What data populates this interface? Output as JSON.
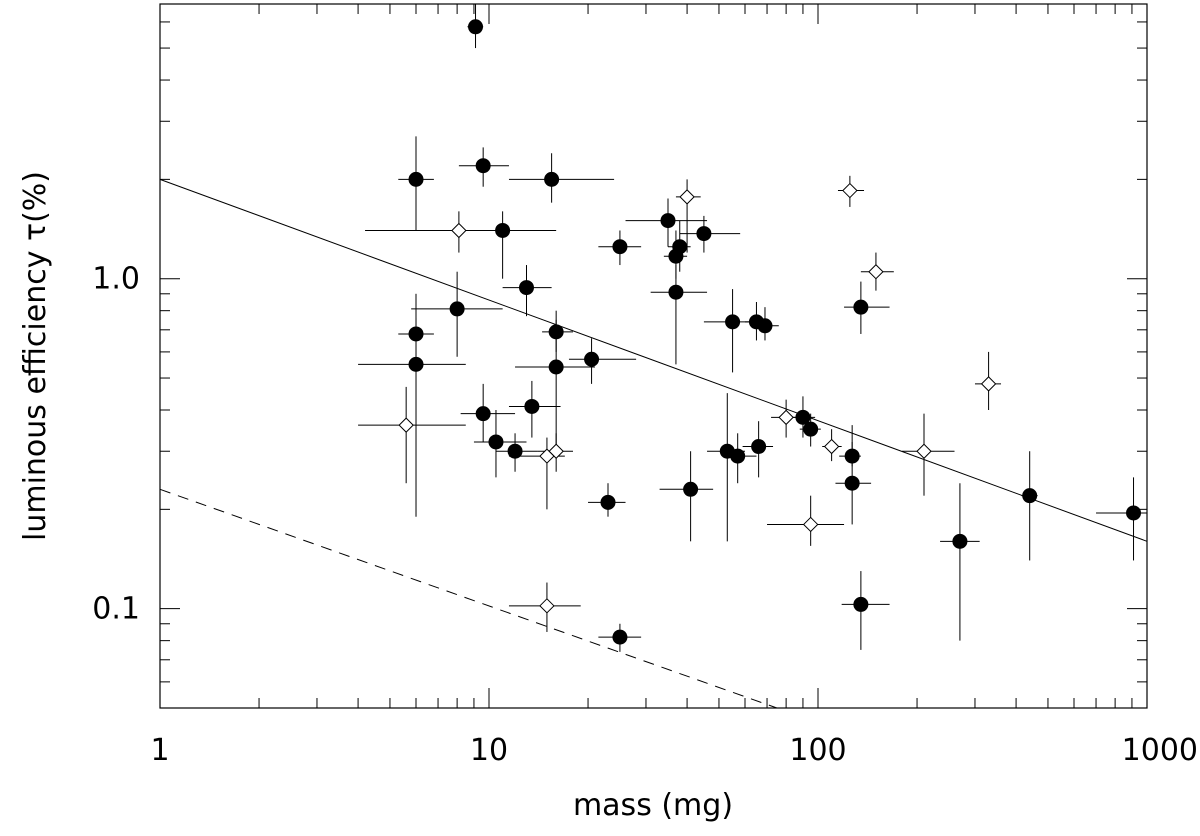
{
  "chart_data": {
    "type": "scatter",
    "title": "",
    "xlabel": "mass (mg)",
    "ylabel": "luminous efficiency τ(%)",
    "xscale": "log",
    "yscale": "log",
    "xlim": [
      1,
      1000
    ],
    "ylim": [
      0.05,
      6.8
    ],
    "x_tick_labels": [
      {
        "value": 1,
        "label": "1"
      },
      {
        "value": 10,
        "label": "10"
      },
      {
        "value": 100,
        "label": "100"
      },
      {
        "value": 1000,
        "label": "1000"
      }
    ],
    "y_tick_labels": [
      {
        "value": 0.1,
        "label": "0.1"
      },
      {
        "value": 1.0,
        "label": "1.0"
      }
    ],
    "series": [
      {
        "name": "filled-circles",
        "marker": "filled-circle",
        "points": [
          {
            "x": 9.1,
            "y": 5.8,
            "xlo": 8.6,
            "xhi": 9.6,
            "ylo": 5.0,
            "yhi": 6.8
          },
          {
            "x": 9.6,
            "y": 2.2,
            "xlo": 8.1,
            "xhi": 11.5,
            "ylo": 1.9,
            "yhi": 2.5
          },
          {
            "x": 6.0,
            "y": 2.0,
            "xlo": 5.3,
            "xhi": 6.8,
            "ylo": 1.4,
            "yhi": 2.7
          },
          {
            "x": 15.5,
            "y": 2.0,
            "xlo": 11.5,
            "xhi": 24.0,
            "ylo": 1.7,
            "yhi": 2.4
          },
          {
            "x": 11.0,
            "y": 1.4,
            "xlo": 8.1,
            "xhi": 16.0,
            "ylo": 1.0,
            "yhi": 1.6
          },
          {
            "x": 25.0,
            "y": 1.25,
            "xlo": 21.5,
            "xhi": 29.0,
            "ylo": 1.1,
            "yhi": 1.4
          },
          {
            "x": 35.0,
            "y": 1.5,
            "xlo": 26.0,
            "xhi": 46.0,
            "ylo": 1.25,
            "yhi": 1.75
          },
          {
            "x": 38.0,
            "y": 1.25,
            "xlo": 35.0,
            "xhi": 41.0,
            "ylo": 1.05,
            "yhi": 1.5
          },
          {
            "x": 37.0,
            "y": 1.17,
            "xlo": 34.0,
            "xhi": 40.0,
            "ylo": 1.0,
            "yhi": 1.4
          },
          {
            "x": 45.0,
            "y": 1.37,
            "xlo": 38.0,
            "xhi": 58.0,
            "ylo": 1.2,
            "yhi": 1.55
          },
          {
            "x": 13.0,
            "y": 0.94,
            "xlo": 11.0,
            "xhi": 15.5,
            "ylo": 0.77,
            "yhi": 1.1
          },
          {
            "x": 37.0,
            "y": 0.91,
            "xlo": 31.0,
            "xhi": 46.0,
            "ylo": 0.55,
            "yhi": 1.1
          },
          {
            "x": 8.0,
            "y": 0.81,
            "xlo": 5.8,
            "xhi": 11.0,
            "ylo": 0.58,
            "yhi": 1.05
          },
          {
            "x": 55.0,
            "y": 0.74,
            "xlo": 45.0,
            "xhi": 62.0,
            "ylo": 0.52,
            "yhi": 0.93
          },
          {
            "x": 65.0,
            "y": 0.74,
            "xlo": 60.0,
            "xhi": 70.0,
            "ylo": 0.65,
            "yhi": 0.85
          },
          {
            "x": 69.0,
            "y": 0.72,
            "xlo": 64.0,
            "xhi": 76.0,
            "ylo": 0.65,
            "yhi": 0.82
          },
          {
            "x": 135.0,
            "y": 0.82,
            "xlo": 120.0,
            "xhi": 165.0,
            "ylo": 0.68,
            "yhi": 0.98
          },
          {
            "x": 6.0,
            "y": 0.68,
            "xlo": 5.3,
            "xhi": 6.8,
            "ylo": 0.55,
            "yhi": 0.9
          },
          {
            "x": 16.0,
            "y": 0.69,
            "xlo": 14.5,
            "xhi": 18.0,
            "ylo": 0.6,
            "yhi": 0.8
          },
          {
            "x": 6.0,
            "y": 0.55,
            "xlo": 4.0,
            "xhi": 8.5,
            "ylo": 0.19,
            "yhi": 0.76
          },
          {
            "x": 16.0,
            "y": 0.54,
            "xlo": 12.0,
            "xhi": 21.0,
            "ylo": 0.29,
            "yhi": 0.75
          },
          {
            "x": 20.5,
            "y": 0.57,
            "xlo": 17.5,
            "xhi": 28.0,
            "ylo": 0.48,
            "yhi": 0.66
          },
          {
            "x": 9.6,
            "y": 0.39,
            "xlo": 8.2,
            "xhi": 12.0,
            "ylo": 0.32,
            "yhi": 0.48
          },
          {
            "x": 13.5,
            "y": 0.41,
            "xlo": 11.5,
            "xhi": 16.5,
            "ylo": 0.33,
            "yhi": 0.49
          },
          {
            "x": 10.5,
            "y": 0.32,
            "xlo": 9.0,
            "xhi": 13.0,
            "ylo": 0.25,
            "yhi": 0.4
          },
          {
            "x": 12.0,
            "y": 0.3,
            "xlo": 10.5,
            "xhi": 14.0,
            "ylo": 0.26,
            "yhi": 0.34
          },
          {
            "x": 23.0,
            "y": 0.21,
            "xlo": 20.0,
            "xhi": 26.0,
            "ylo": 0.19,
            "yhi": 0.24
          },
          {
            "x": 41.0,
            "y": 0.23,
            "xlo": 33.0,
            "xhi": 48.0,
            "ylo": 0.16,
            "yhi": 0.3
          },
          {
            "x": 53.0,
            "y": 0.3,
            "xlo": 46.0,
            "xhi": 60.0,
            "ylo": 0.16,
            "yhi": 0.45
          },
          {
            "x": 57.0,
            "y": 0.29,
            "xlo": 52.0,
            "xhi": 65.0,
            "ylo": 0.24,
            "yhi": 0.34
          },
          {
            "x": 66.0,
            "y": 0.31,
            "xlo": 59.0,
            "xhi": 73.0,
            "ylo": 0.25,
            "yhi": 0.37
          },
          {
            "x": 90.0,
            "y": 0.38,
            "xlo": 82.0,
            "xhi": 98.0,
            "ylo": 0.33,
            "yhi": 0.44
          },
          {
            "x": 95.0,
            "y": 0.35,
            "xlo": 88.0,
            "xhi": 102.0,
            "ylo": 0.31,
            "yhi": 0.39
          },
          {
            "x": 127.0,
            "y": 0.29,
            "xlo": 116.0,
            "xhi": 135.0,
            "ylo": 0.27,
            "yhi": 0.32
          },
          {
            "x": 127.0,
            "y": 0.24,
            "xlo": 113.0,
            "xhi": 145.0,
            "ylo": 0.18,
            "yhi": 0.36
          },
          {
            "x": 25.0,
            "y": 0.082,
            "xlo": 21.5,
            "xhi": 29.0,
            "ylo": 0.074,
            "yhi": 0.09
          },
          {
            "x": 135.0,
            "y": 0.103,
            "xlo": 118.0,
            "xhi": 165.0,
            "ylo": 0.075,
            "yhi": 0.13
          },
          {
            "x": 270.0,
            "y": 0.16,
            "xlo": 235.0,
            "xhi": 310.0,
            "ylo": 0.08,
            "yhi": 0.24
          },
          {
            "x": 440.0,
            "y": 0.22,
            "xlo": 415.0,
            "xhi": 465.0,
            "ylo": 0.14,
            "yhi": 0.3
          },
          {
            "x": 910.0,
            "y": 0.195,
            "xlo": 700.0,
            "xhi": 1000.0,
            "ylo": 0.14,
            "yhi": 0.25
          }
        ]
      },
      {
        "name": "open-diamonds",
        "marker": "open-diamond",
        "points": [
          {
            "x": 8.1,
            "y": 1.4,
            "xlo": 4.2,
            "xhi": 13.0,
            "ylo": 1.2,
            "yhi": 1.6
          },
          {
            "x": 40.0,
            "y": 1.77,
            "xlo": 37.0,
            "xhi": 44.0,
            "ylo": 1.2,
            "yhi": 2.0
          },
          {
            "x": 125.0,
            "y": 1.85,
            "xlo": 115.0,
            "xhi": 138.0,
            "ylo": 1.65,
            "yhi": 2.05
          },
          {
            "x": 150.0,
            "y": 1.05,
            "xlo": 135.0,
            "xhi": 170.0,
            "ylo": 0.92,
            "yhi": 1.2
          },
          {
            "x": 5.6,
            "y": 0.36,
            "xlo": 4.0,
            "xhi": 8.5,
            "ylo": 0.24,
            "yhi": 0.47
          },
          {
            "x": 16.0,
            "y": 0.3,
            "xlo": 14.0,
            "xhi": 18.0,
            "ylo": 0.26,
            "yhi": 0.34
          },
          {
            "x": 15.0,
            "y": 0.29,
            "xlo": 11.5,
            "xhi": 17.0,
            "ylo": 0.2,
            "yhi": 0.33
          },
          {
            "x": 80.0,
            "y": 0.38,
            "xlo": 72.0,
            "xhi": 88.0,
            "ylo": 0.33,
            "yhi": 0.43
          },
          {
            "x": 95.0,
            "y": 0.18,
            "xlo": 70.0,
            "xhi": 120.0,
            "ylo": 0.155,
            "yhi": 0.22
          },
          {
            "x": 110.0,
            "y": 0.31,
            "xlo": 103.0,
            "xhi": 118.0,
            "ylo": 0.28,
            "yhi": 0.35
          },
          {
            "x": 210.0,
            "y": 0.3,
            "xlo": 180.0,
            "xhi": 260.0,
            "ylo": 0.22,
            "yhi": 0.39
          },
          {
            "x": 330.0,
            "y": 0.48,
            "xlo": 300.0,
            "xhi": 360.0,
            "ylo": 0.4,
            "yhi": 0.6
          },
          {
            "x": 15.0,
            "y": 0.102,
            "xlo": 11.5,
            "xhi": 19.0,
            "ylo": 0.085,
            "yhi": 0.12
          }
        ]
      }
    ],
    "lines": [
      {
        "name": "solid-fit-line",
        "style": "solid",
        "from": {
          "x": 1,
          "y": 2.0
        },
        "to": {
          "x": 1000,
          "y": 0.16
        }
      },
      {
        "name": "dashed-fit-line",
        "style": "dashed",
        "from": {
          "x": 1,
          "y": 0.23
        },
        "to": {
          "x": 75,
          "y": 0.05
        }
      }
    ]
  }
}
